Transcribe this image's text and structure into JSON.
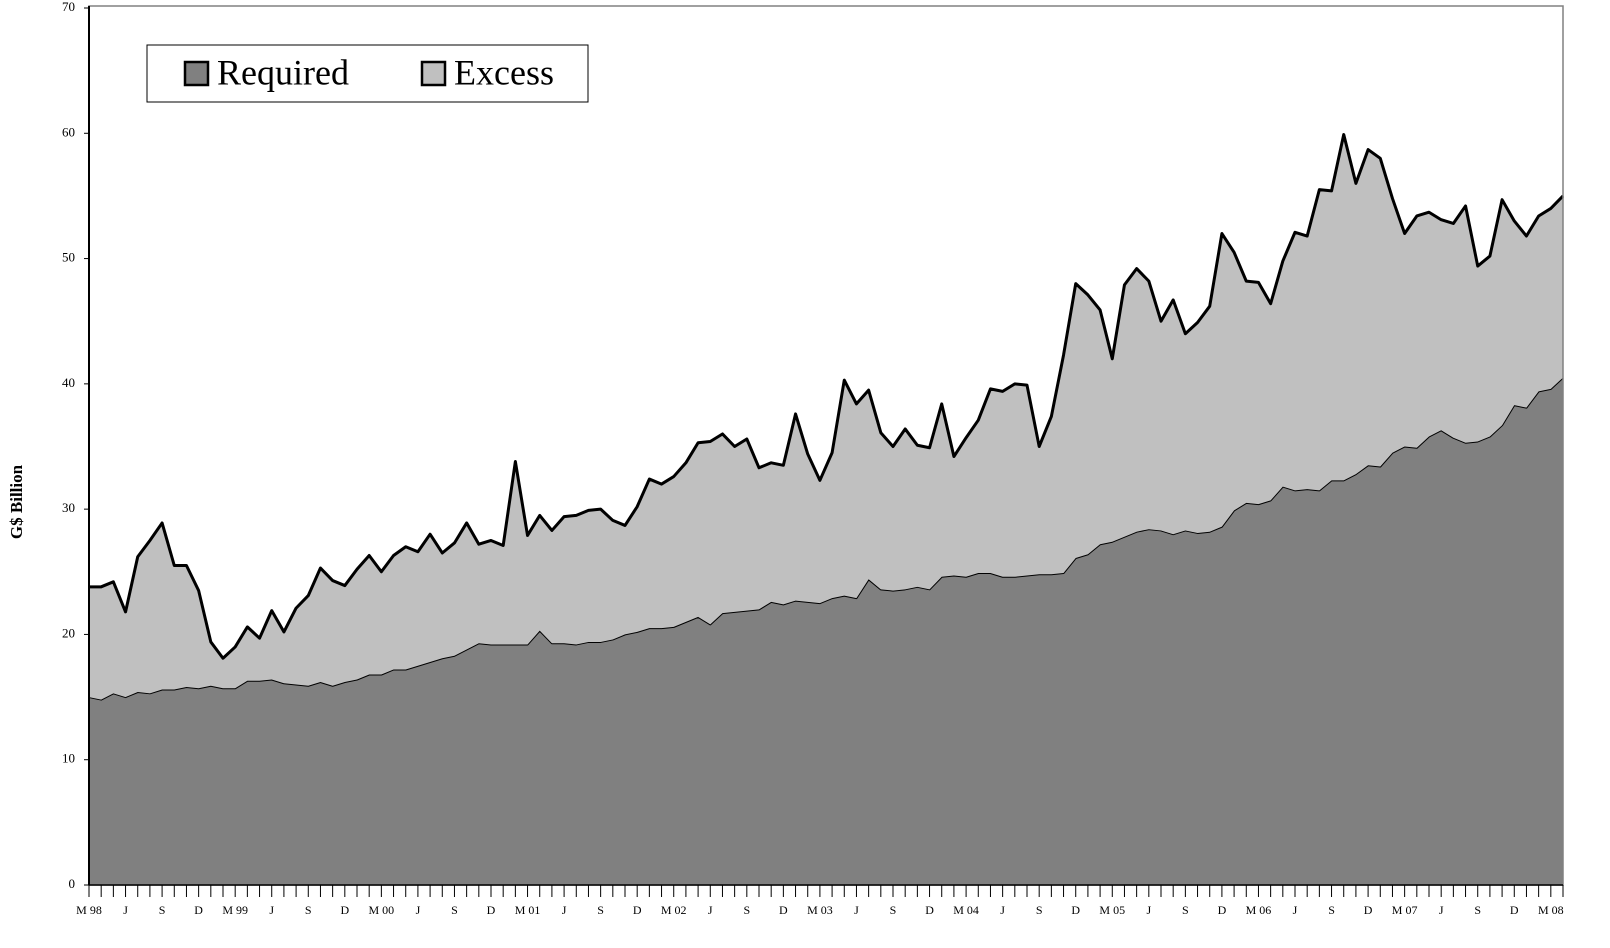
{
  "chart_data": {
    "type": "stacked_area",
    "y_label": "G$ Billion",
    "categories": [
      "M 98",
      null,
      null,
      "J",
      null,
      null,
      "S",
      null,
      null,
      "D",
      null,
      null,
      "M 99",
      null,
      null,
      "J",
      null,
      null,
      "S",
      null,
      null,
      "D",
      null,
      null,
      "M 00",
      null,
      null,
      "J",
      null,
      null,
      "S",
      null,
      null,
      "D",
      null,
      null,
      "M 01",
      null,
      null,
      "J",
      null,
      null,
      "S",
      null,
      null,
      "D",
      null,
      null,
      "M 02",
      null,
      null,
      "J",
      null,
      null,
      "S",
      null,
      null,
      "D",
      null,
      null,
      "M 03",
      null,
      null,
      "J",
      null,
      null,
      "S",
      null,
      null,
      "D",
      null,
      null,
      "M 04",
      null,
      null,
      "J",
      null,
      null,
      "S",
      null,
      null,
      "D",
      null,
      null,
      "M 05",
      null,
      null,
      "J",
      null,
      null,
      "S",
      null,
      null,
      "D",
      null,
      null,
      "M 06",
      null,
      null,
      "J",
      null,
      null,
      "S",
      null,
      null,
      "D",
      null,
      null,
      "M 07",
      null,
      null,
      "J",
      null,
      null,
      "S",
      null,
      null,
      "D",
      null,
      null,
      "M 08",
      null
    ],
    "series": [
      {
        "name": "Required",
        "color": "#808080",
        "values": [
          15.0,
          14.8,
          15.3,
          15.0,
          15.4,
          15.3,
          15.6,
          15.6,
          15.8,
          15.7,
          15.9,
          15.7,
          15.7,
          16.3,
          16.3,
          16.4,
          16.1,
          16.0,
          15.9,
          16.2,
          15.9,
          16.2,
          16.4,
          16.8,
          16.8,
          17.2,
          17.2,
          17.5,
          17.8,
          18.1,
          18.3,
          18.8,
          19.3,
          19.2,
          19.2,
          19.2,
          19.2,
          20.3,
          19.3,
          19.3,
          19.2,
          19.4,
          19.4,
          19.6,
          20.0,
          20.2,
          20.5,
          20.5,
          20.6,
          21.0,
          21.4,
          20.8,
          21.7,
          21.8,
          21.9,
          22.0,
          22.6,
          22.4,
          22.7,
          22.6,
          22.5,
          22.9,
          23.1,
          22.9,
          24.4,
          23.6,
          23.5,
          23.6,
          23.8,
          23.6,
          24.6,
          24.7,
          24.6,
          24.9,
          24.9,
          24.6,
          24.6,
          24.7,
          24.8,
          24.8,
          24.9,
          26.1,
          26.4,
          27.2,
          27.4,
          27.8,
          28.2,
          28.4,
          28.3,
          28.0,
          28.3,
          28.1,
          28.2,
          28.6,
          29.9,
          30.5,
          30.4,
          30.7,
          31.8,
          31.5,
          31.6,
          31.5,
          32.3,
          32.3,
          32.8,
          33.5,
          33.4,
          34.5,
          35.0,
          34.9,
          35.8,
          36.3,
          35.7,
          35.3,
          35.4,
          35.8,
          36.7,
          38.3,
          38.1,
          39.4,
          39.6,
          40.5
        ]
      },
      {
        "name": "Excess",
        "color": "#c0c0c0",
        "values": [
          8.8,
          9.0,
          8.9,
          6.8,
          10.8,
          12.2,
          13.3,
          9.9,
          9.7,
          7.8,
          3.5,
          2.4,
          3.3,
          4.3,
          3.4,
          5.5,
          4.1,
          6.1,
          7.2,
          9.1,
          8.4,
          7.7,
          8.8,
          9.5,
          8.2,
          9.1,
          9.8,
          9.1,
          10.2,
          8.4,
          9.0,
          10.1,
          7.9,
          8.3,
          7.9,
          14.6,
          8.7,
          9.2,
          9.0,
          10.1,
          10.3,
          10.5,
          10.6,
          9.5,
          8.7,
          10.0,
          11.9,
          11.5,
          12.0,
          12.7,
          13.9,
          14.6,
          14.3,
          13.2,
          13.7,
          11.3,
          11.1,
          11.1,
          14.9,
          11.8,
          9.8,
          11.6,
          17.2,
          15.5,
          15.1,
          12.5,
          11.5,
          12.8,
          11.3,
          11.3,
          13.8,
          9.5,
          11.1,
          12.2,
          14.7,
          14.8,
          15.4,
          15.2,
          10.2,
          12.6,
          17.4,
          21.9,
          20.7,
          18.7,
          14.6,
          20.1,
          21.0,
          19.8,
          16.7,
          18.7,
          15.7,
          16.8,
          18.0,
          23.4,
          20.6,
          17.7,
          17.7,
          15.7,
          18.0,
          20.6,
          20.2,
          24.0,
          23.1,
          27.6,
          23.2,
          25.2,
          24.6,
          20.3,
          17.0,
          18.5,
          17.9,
          16.8,
          17.1,
          18.9,
          14.0,
          14.4,
          18.0,
          14.7,
          13.7,
          14.0,
          14.4,
          14.5
        ]
      }
    ],
    "ylim": [
      0,
      70
    ],
    "yticks": [
      0,
      10,
      20,
      30,
      40,
      50,
      60,
      70
    ],
    "line_color": "#000000",
    "legend": "top-left",
    "grid": false
  }
}
